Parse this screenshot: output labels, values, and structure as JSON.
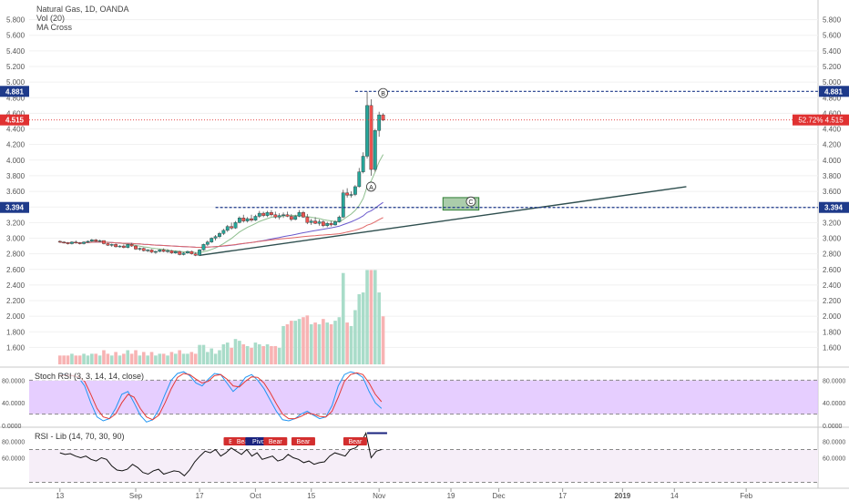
{
  "legend": {
    "symbol": "Natural Gas, 1D, OANDA",
    "vol": "Vol (20)",
    "ma": "MA Cross"
  },
  "stoch_label": "Stoch RSI (3, 3, 14, 14, close)",
  "rsi_label": "RSI - Lib (14, 70, 30, 90)",
  "colors": {
    "up": "#26a69a",
    "down": "#ef5350",
    "blue_level": "#1e3a8a",
    "red_level": "#e03131",
    "stoch_fill": "#e0c2ff"
  },
  "chart_data": {
    "type": "candlestick",
    "price_axis": {
      "ticks": [
        "1.600",
        "1.800",
        "2.000",
        "2.200",
        "2.400",
        "2.600",
        "2.800",
        "3.000",
        "3.200",
        "3.400",
        "3.600",
        "3.800",
        "4.000",
        "4.200",
        "4.400",
        "4.600",
        "4.800",
        "5.000",
        "5.200",
        "5.400",
        "5.600",
        "5.800"
      ],
      "range": [
        1.5,
        5.9
      ]
    },
    "x_ticks": [
      {
        "label": "13",
        "d": -19
      },
      {
        "label": "Sep",
        "d": 0
      },
      {
        "label": "17",
        "d": 16
      },
      {
        "label": "Oct",
        "d": 30
      },
      {
        "label": "15",
        "d": 44
      },
      {
        "label": "Nov",
        "d": 61
      },
      {
        "label": "19",
        "d": 79
      },
      {
        "label": "Dec",
        "d": 91
      },
      {
        "label": "17",
        "d": 107
      },
      {
        "label": "2019",
        "d": 122
      },
      {
        "label": "14",
        "d": 135
      },
      {
        "label": "Feb",
        "d": 153
      }
    ],
    "levels": [
      {
        "label": "4.881",
        "value": 4.881,
        "from_d": 55
      },
      {
        "label": "3.394",
        "value": 3.394,
        "from_d": 20
      }
    ],
    "last_price": {
      "label": "4.515",
      "value": 4.515,
      "pct": "52.72%"
    },
    "candles": [
      [
        -19,
        2.96,
        2.97,
        2.94,
        2.95
      ],
      [
        -18,
        2.95,
        2.96,
        2.93,
        2.94
      ],
      [
        -17,
        2.94,
        2.95,
        2.92,
        2.93
      ],
      [
        -16,
        2.93,
        2.96,
        2.92,
        2.95
      ],
      [
        -15,
        2.95,
        2.97,
        2.93,
        2.94
      ],
      [
        -14,
        2.94,
        2.95,
        2.92,
        2.93
      ],
      [
        -13,
        2.93,
        2.96,
        2.92,
        2.95
      ],
      [
        -12,
        2.95,
        2.97,
        2.94,
        2.96
      ],
      [
        -11,
        2.96,
        2.99,
        2.95,
        2.98
      ],
      [
        -10,
        2.98,
        2.99,
        2.95,
        2.96
      ],
      [
        -9,
        2.96,
        2.98,
        2.95,
        2.97
      ],
      [
        -8,
        2.97,
        2.97,
        2.92,
        2.93
      ],
      [
        -7,
        2.93,
        2.94,
        2.9,
        2.91
      ],
      [
        -6,
        2.91,
        2.93,
        2.89,
        2.92
      ],
      [
        -5,
        2.92,
        2.93,
        2.88,
        2.89
      ],
      [
        -4,
        2.89,
        2.91,
        2.88,
        2.9
      ],
      [
        -3,
        2.9,
        2.92,
        2.87,
        2.88
      ],
      [
        -2,
        2.88,
        2.93,
        2.87,
        2.92
      ],
      [
        -1,
        2.92,
        2.94,
        2.89,
        2.9
      ],
      [
        0,
        2.9,
        2.91,
        2.85,
        2.86
      ],
      [
        1,
        2.86,
        2.88,
        2.84,
        2.87
      ],
      [
        2,
        2.87,
        2.88,
        2.83,
        2.84
      ],
      [
        3,
        2.84,
        2.86,
        2.82,
        2.85
      ],
      [
        4,
        2.85,
        2.86,
        2.81,
        2.82
      ],
      [
        5,
        2.82,
        2.84,
        2.8,
        2.83
      ],
      [
        6,
        2.83,
        2.86,
        2.82,
        2.85
      ],
      [
        7,
        2.85,
        2.87,
        2.82,
        2.83
      ],
      [
        8,
        2.83,
        2.86,
        2.81,
        2.84
      ],
      [
        9,
        2.84,
        2.85,
        2.8,
        2.81
      ],
      [
        10,
        2.81,
        2.84,
        2.8,
        2.83
      ],
      [
        11,
        2.83,
        2.84,
        2.78,
        2.79
      ],
      [
        12,
        2.79,
        2.82,
        2.78,
        2.81
      ],
      [
        13,
        2.81,
        2.84,
        2.8,
        2.83
      ],
      [
        14,
        2.83,
        2.84,
        2.79,
        2.8
      ],
      [
        15,
        2.8,
        2.82,
        2.77,
        2.78
      ],
      [
        16,
        2.78,
        2.86,
        2.77,
        2.85
      ],
      [
        17,
        2.85,
        2.93,
        2.84,
        2.92
      ],
      [
        18,
        2.92,
        2.97,
        2.9,
        2.95
      ],
      [
        19,
        2.95,
        3.01,
        2.94,
        3.0
      ],
      [
        20,
        3.0,
        3.04,
        2.97,
        3.02
      ],
      [
        21,
        3.02,
        3.08,
        3.0,
        3.06
      ],
      [
        22,
        3.06,
        3.12,
        3.04,
        3.1
      ],
      [
        23,
        3.1,
        3.17,
        3.08,
        3.15
      ],
      [
        24,
        3.15,
        3.2,
        3.11,
        3.13
      ],
      [
        25,
        3.13,
        3.22,
        3.12,
        3.2
      ],
      [
        26,
        3.2,
        3.28,
        3.19,
        3.26
      ],
      [
        27,
        3.26,
        3.3,
        3.2,
        3.22
      ],
      [
        28,
        3.22,
        3.27,
        3.2,
        3.25
      ],
      [
        29,
        3.25,
        3.3,
        3.21,
        3.23
      ],
      [
        30,
        3.23,
        3.3,
        3.22,
        3.28
      ],
      [
        31,
        3.28,
        3.35,
        3.26,
        3.32
      ],
      [
        32,
        3.32,
        3.34,
        3.27,
        3.29
      ],
      [
        33,
        3.29,
        3.35,
        3.27,
        3.33
      ],
      [
        34,
        3.33,
        3.36,
        3.28,
        3.3
      ],
      [
        35,
        3.3,
        3.34,
        3.25,
        3.27
      ],
      [
        36,
        3.27,
        3.32,
        3.24,
        3.29
      ],
      [
        37,
        3.29,
        3.33,
        3.26,
        3.3
      ],
      [
        38,
        3.3,
        3.34,
        3.27,
        3.28
      ],
      [
        39,
        3.28,
        3.31,
        3.22,
        3.24
      ],
      [
        40,
        3.24,
        3.3,
        3.23,
        3.28
      ],
      [
        41,
        3.28,
        3.36,
        3.27,
        3.33
      ],
      [
        42,
        3.33,
        3.35,
        3.26,
        3.27
      ],
      [
        43,
        3.27,
        3.31,
        3.18,
        3.2
      ],
      [
        44,
        3.2,
        3.25,
        3.17,
        3.22
      ],
      [
        45,
        3.22,
        3.27,
        3.18,
        3.19
      ],
      [
        46,
        3.19,
        3.24,
        3.16,
        3.21
      ],
      [
        47,
        3.21,
        3.23,
        3.14,
        3.16
      ],
      [
        48,
        3.16,
        3.21,
        3.14,
        3.19
      ],
      [
        49,
        3.19,
        3.22,
        3.15,
        3.17
      ],
      [
        50,
        3.17,
        3.23,
        3.16,
        3.21
      ],
      [
        51,
        3.21,
        3.29,
        3.2,
        3.27
      ],
      [
        52,
        3.27,
        3.62,
        3.26,
        3.58
      ],
      [
        53,
        3.58,
        3.64,
        3.52,
        3.55
      ],
      [
        54,
        3.55,
        3.6,
        3.52,
        3.56
      ],
      [
        55,
        3.56,
        3.68,
        3.54,
        3.66
      ],
      [
        56,
        3.66,
        3.9,
        3.65,
        3.85
      ],
      [
        57,
        3.85,
        4.1,
        3.83,
        4.05
      ],
      [
        58,
        4.05,
        4.88,
        4.02,
        4.7
      ],
      [
        59,
        4.7,
        4.78,
        3.8,
        3.88
      ],
      [
        60,
        3.88,
        4.4,
        3.85,
        4.38
      ],
      [
        61,
        4.38,
        4.62,
        4.3,
        4.58
      ],
      [
        62,
        4.58,
        4.6,
        4.5,
        4.515
      ]
    ],
    "volume_note": "volume pane",
    "stoch": {
      "ticks": [
        "0.0000",
        "40.0000",
        "80.0000"
      ],
      "upper": 80,
      "lower": 20
    },
    "rsi": {
      "ticks": [
        "60.0000",
        "80.0000"
      ],
      "upper": 70,
      "lower": 30,
      "labels": [
        {
          "text": "Bear",
          "d": 25,
          "kind": "bear"
        },
        {
          "text": "Bear",
          "d": 27,
          "kind": "bear"
        },
        {
          "text": "Pivot",
          "d": 31,
          "kind": "pivot"
        },
        {
          "text": "Bear",
          "d": 35,
          "kind": "bear"
        },
        {
          "text": "Bear",
          "d": 42,
          "kind": "bear"
        },
        {
          "text": "Bear",
          "d": 55,
          "kind": "bear"
        }
      ]
    },
    "wave_labels": [
      {
        "text": "A",
        "d": 59,
        "value": 3.66
      },
      {
        "text": "B",
        "d": 62,
        "value": 4.86
      },
      {
        "text": "C",
        "d": 84,
        "value": 3.47
      }
    ]
  }
}
